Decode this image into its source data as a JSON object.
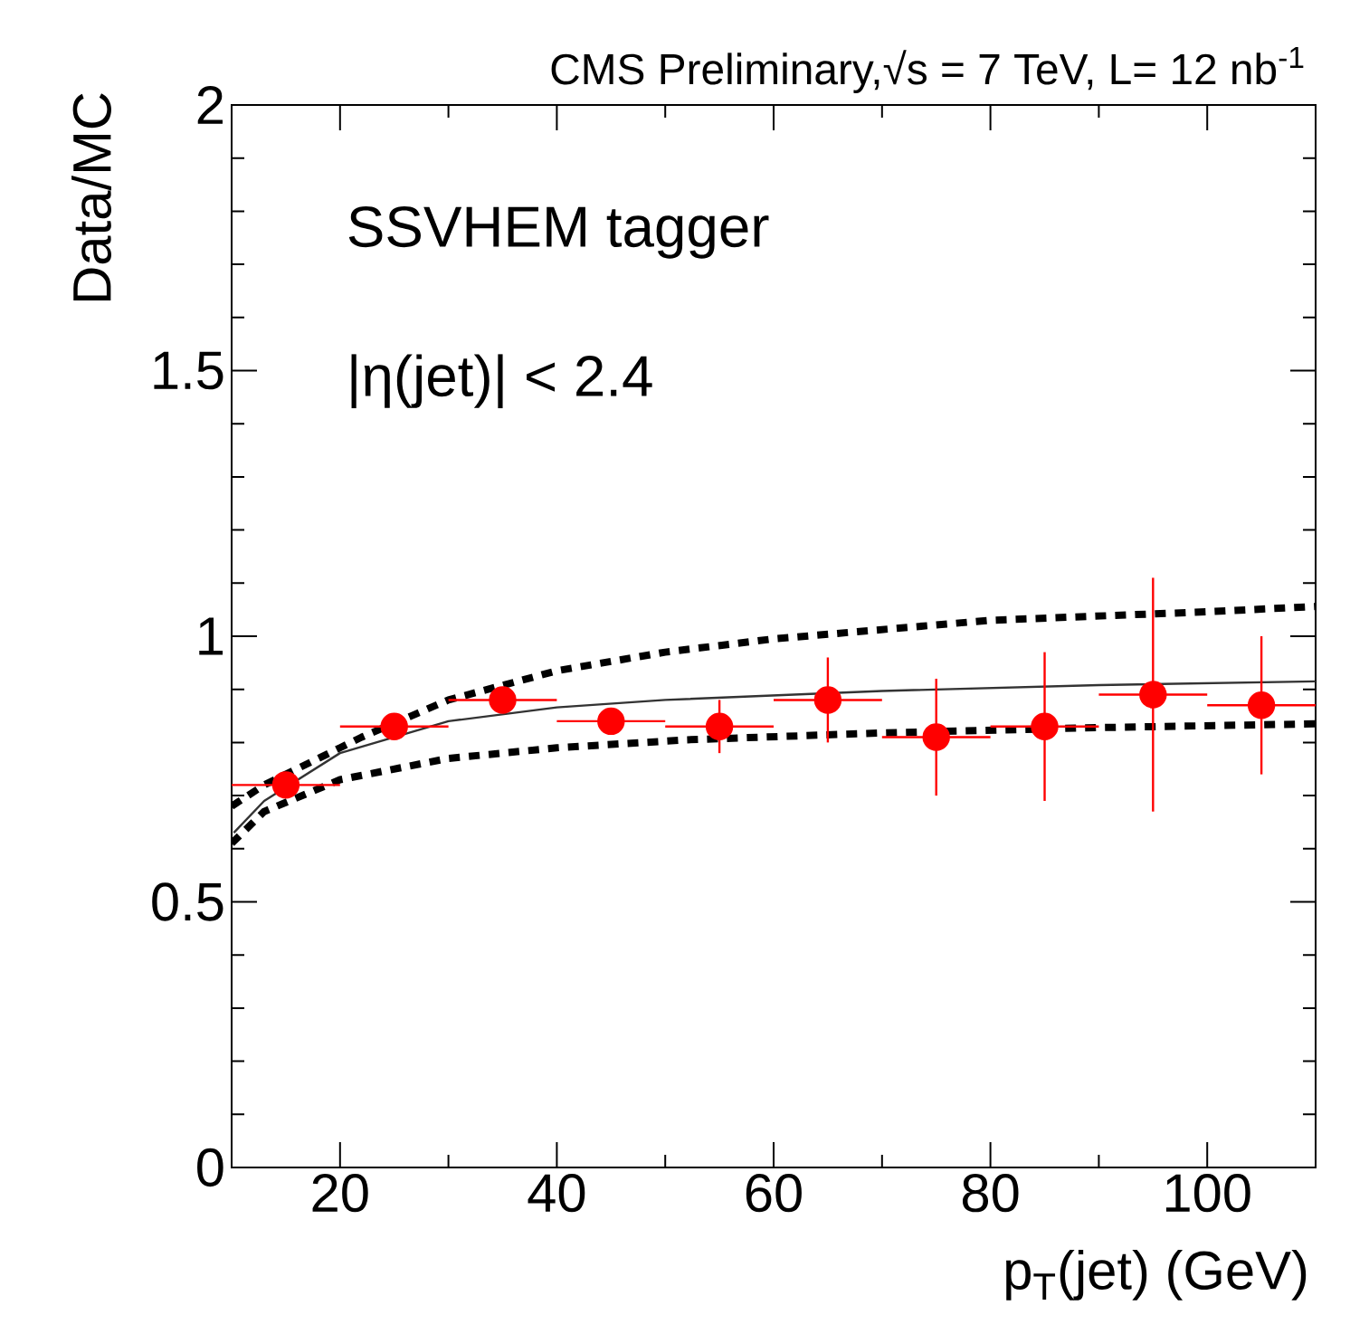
{
  "chart_data": {
    "type": "scatter",
    "title": "CMS Preliminary,√s = 7 TeV, L= 12 nb$^{-1}$",
    "xlabel": "p$_{T}$(jet) (GeV)",
    "ylabel": "Data/MC",
    "annotations": [
      "SSVHEM tagger",
      "|η(jet)| < 2.4"
    ],
    "xlim": [
      10,
      110
    ],
    "ylim": [
      0,
      2
    ],
    "xticks": [
      20,
      40,
      60,
      80,
      100
    ],
    "yticks": [
      0,
      {
        "value": 0.5,
        "label": "0.5"
      },
      1,
      {
        "value": 1.5,
        "label": "1.5"
      },
      2
    ],
    "grid": false,
    "series": [
      {
        "type": "line",
        "color": "#333333",
        "line_style": "solid",
        "marker": "none",
        "x": [
          10.2,
          13,
          20,
          30,
          40,
          50,
          70,
          90,
          110
        ],
        "values": [
          0.63,
          0.69,
          0.78,
          0.84,
          0.866,
          0.88,
          0.897,
          0.908,
          0.915
        ]
      },
      {
        "type": "line",
        "color": "#000000",
        "line_style": "dashed",
        "marker": "none",
        "x": [
          10,
          13,
          20,
          22,
          30,
          40,
          50,
          60,
          80,
          100,
          110
        ],
        "values": [
          0.68,
          0.72,
          0.79,
          0.81,
          0.88,
          0.935,
          0.97,
          0.995,
          1.03,
          1.046,
          1.056
        ]
      },
      {
        "type": "line",
        "color": "#000000",
        "line_style": "dashed",
        "marker": "none",
        "x": [
          10,
          13,
          20,
          30,
          40,
          52,
          70,
          90,
          110
        ],
        "values": [
          0.61,
          0.67,
          0.73,
          0.77,
          0.79,
          0.805,
          0.818,
          0.828,
          0.835
        ]
      },
      {
        "color": "#ff0000",
        "marker": "circle",
        "x": [
          15,
          25,
          35,
          45,
          55,
          65,
          75,
          85,
          95,
          105
        ],
        "values": [
          0.72,
          0.83,
          0.88,
          0.84,
          0.83,
          0.88,
          0.81,
          0.83,
          0.89,
          0.87
        ],
        "errors": [
          0.02,
          0.02,
          0.02,
          0.02,
          0.05,
          0.08,
          0.11,
          0.14,
          0.22,
          0.13
        ],
        "xerrors": [
          5,
          5,
          5,
          5,
          5,
          5,
          5,
          5,
          5,
          5
        ]
      }
    ]
  }
}
